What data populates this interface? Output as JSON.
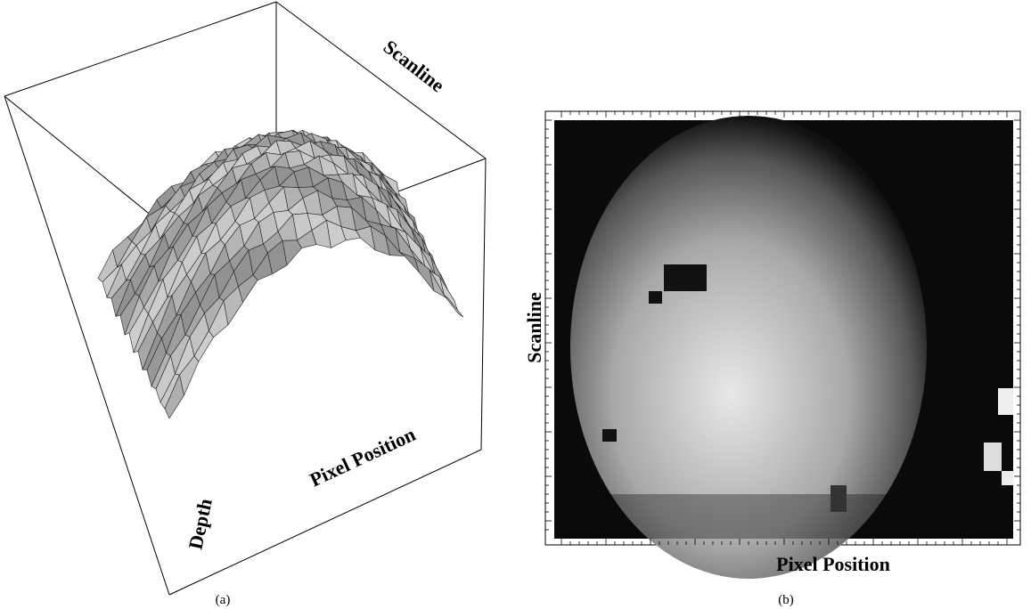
{
  "panel_a": {
    "axis_scanline": "Scanline",
    "axis_depth": "Depth",
    "axis_pixel": "Pixel Position",
    "caption": "(a)"
  },
  "panel_b": {
    "axis_scanline": "Scanline",
    "axis_pixel": "Pixel Position",
    "caption": "(b)"
  }
}
